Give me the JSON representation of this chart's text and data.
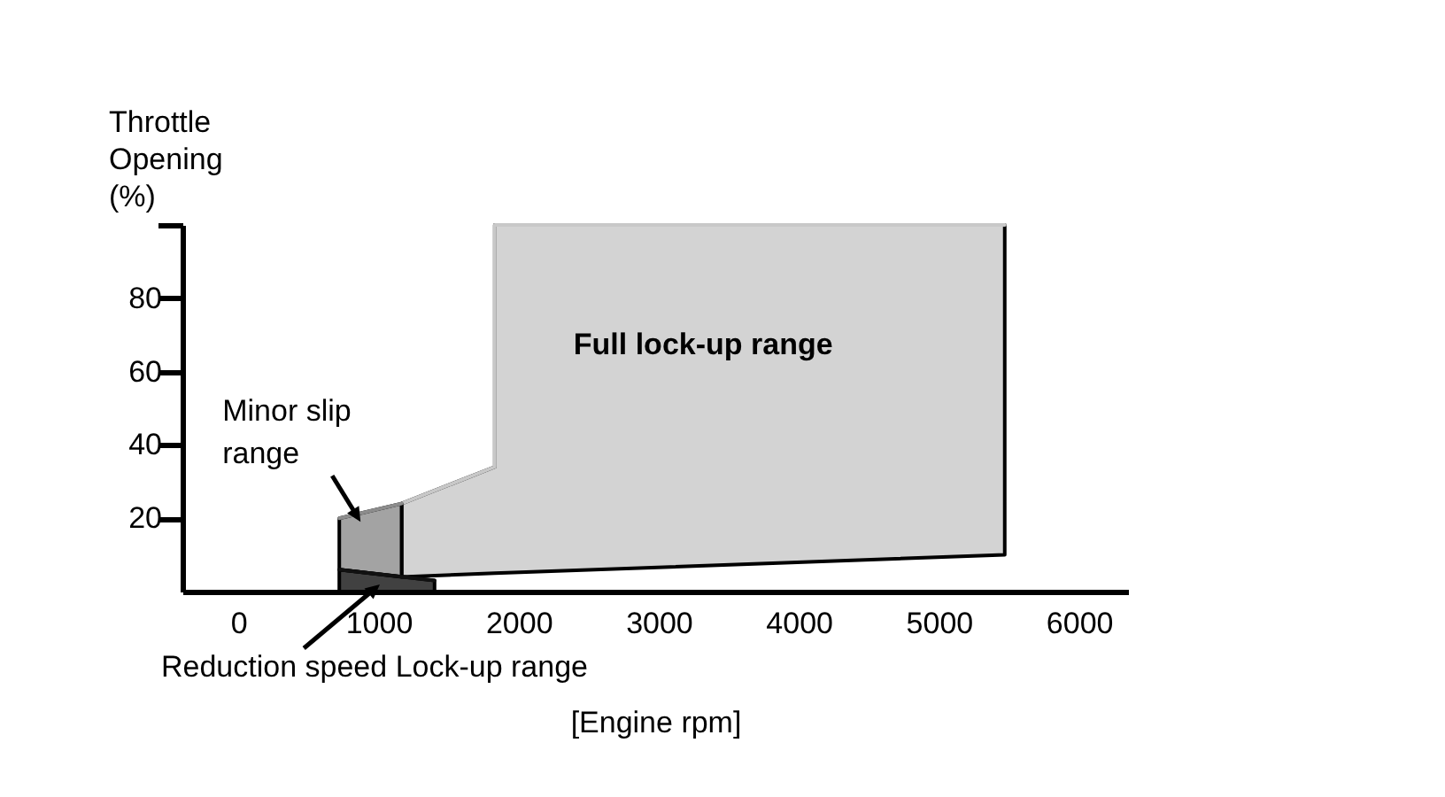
{
  "chart_data": {
    "type": "line",
    "xlabel": "[Engine rpm]",
    "ylabel": "Throttle Opening (%)",
    "xlim": [
      -400,
      6350
    ],
    "ylim": [
      0,
      100
    ],
    "xticks": [
      0,
      1000,
      2000,
      3000,
      4000,
      5000,
      6000
    ],
    "yticks": [
      20,
      40,
      60,
      80,
      {
        "value": 100,
        "label": null
      }
    ],
    "series": [
      {
        "type": "line",
        "color": "#c8c8c8",
        "x": [
          1165,
          1830,
          1830,
          5470
        ],
        "values": [
          24,
          34,
          100,
          100
        ],
        "lower": [
          4,
          5,
          5,
          10
        ],
        "upper": [
          24,
          34,
          100,
          100
        ]
      },
      {
        "type": "line",
        "color": "#8c8c8c",
        "x": [
          720,
          1165
        ],
        "values": [
          20,
          24
        ],
        "lower": [
          6,
          4
        ],
        "upper": [
          20,
          24
        ]
      },
      {
        "type": "line",
        "color": "#111111",
        "x": [
          720,
          1400
        ],
        "values": [
          6,
          3
        ],
        "lower": [
          0,
          0
        ],
        "upper": [
          6,
          3
        ]
      }
    ],
    "annotations": [
      "Full lock-up range",
      "Minor slip range",
      "Reduction speed Lock-up range"
    ],
    "grid": false
  }
}
